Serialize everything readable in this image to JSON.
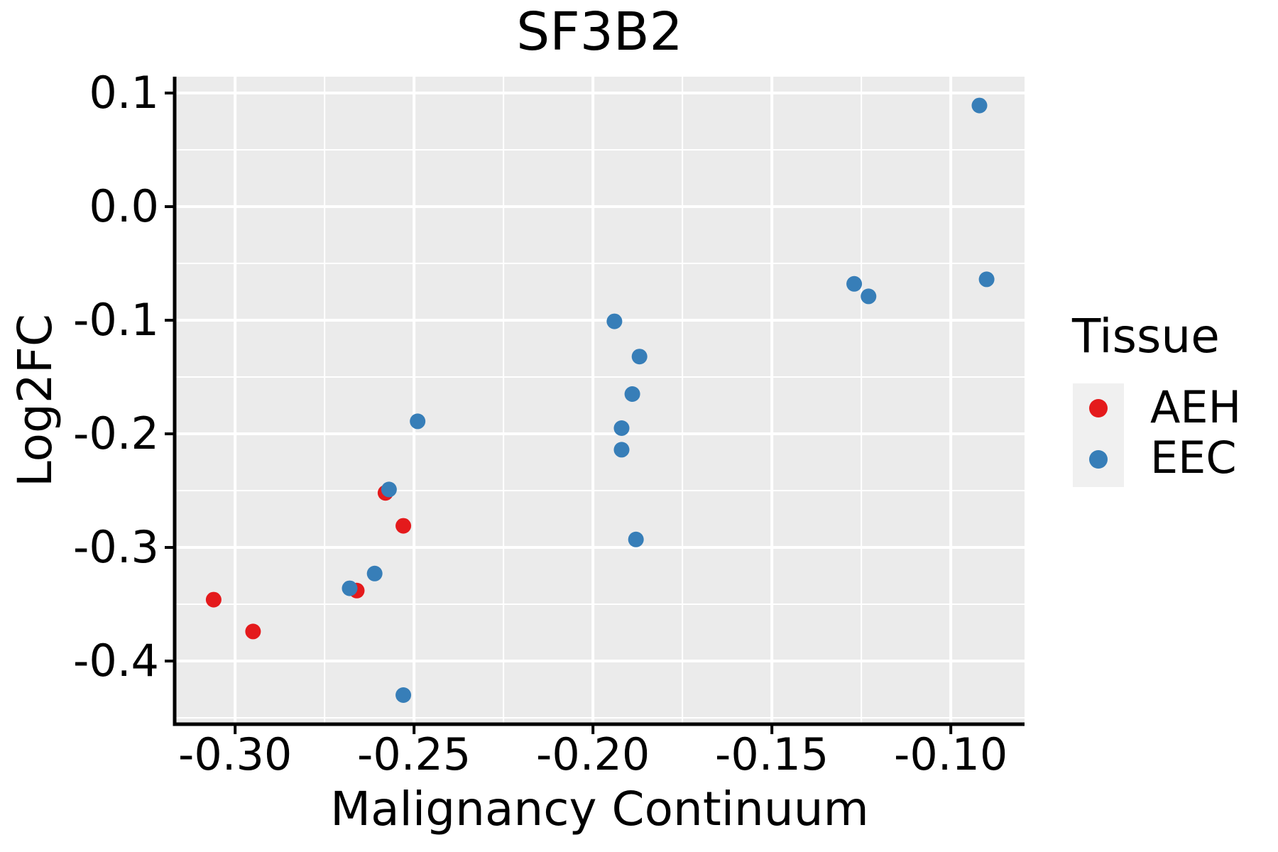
{
  "title": "SF3B2",
  "axes": {
    "x_label": "Malignancy Continuum",
    "y_label": "Log2FC",
    "x_tick_labels": [
      "-0.30",
      "-0.25",
      "-0.20",
      "-0.15",
      "-0.10"
    ],
    "y_tick_labels": [
      "0.1",
      "0.0",
      "-0.1",
      "-0.2",
      "-0.3",
      "-0.4"
    ]
  },
  "legend": {
    "title": "Tissue",
    "items": [
      {
        "label": "AEH",
        "color": "#E41A1C"
      },
      {
        "label": "EEC",
        "color": "#377EB8"
      }
    ]
  },
  "colors": {
    "panel_background": "#EBEBEB",
    "grid": "#FFFFFF",
    "axis": "#000000",
    "text": "#000000",
    "aeh": "#E41A1C",
    "eec": "#377EB8"
  },
  "chart_data": {
    "type": "scatter",
    "title": "SF3B2",
    "xlabel": "Malignancy Continuum",
    "ylabel": "Log2FC",
    "legend_title": "Tissue",
    "legend_position": "right",
    "grid": true,
    "panel_bg": "#EBEBEB",
    "grid_color": "#FFFFFF",
    "point_radius": 11,
    "xlim": [
      -0.3169,
      -0.0794
    ],
    "ylim": [
      -0.4556,
      0.1144
    ],
    "x_ticks": [
      -0.3,
      -0.25,
      -0.2,
      -0.15,
      -0.1
    ],
    "x_minor_ticks": [
      -0.275,
      -0.225,
      -0.175,
      -0.125
    ],
    "y_ticks": [
      0.1,
      0.0,
      -0.1,
      -0.2,
      -0.3,
      -0.4
    ],
    "y_minor_ticks": [
      0.05,
      -0.05,
      -0.15,
      -0.25,
      -0.35,
      -0.45
    ],
    "series": [
      {
        "name": "AEH",
        "color": "#E41A1C",
        "points": [
          [
            -0.258,
            -0.252
          ],
          [
            -0.253,
            -0.281
          ],
          [
            -0.266,
            -0.338
          ],
          [
            -0.306,
            -0.346
          ],
          [
            -0.295,
            -0.374
          ]
        ]
      },
      {
        "name": "EEC",
        "color": "#377EB8",
        "points": [
          [
            -0.249,
            -0.189
          ],
          [
            -0.257,
            -0.249
          ],
          [
            -0.261,
            -0.323
          ],
          [
            -0.268,
            -0.336
          ],
          [
            -0.253,
            -0.43
          ],
          [
            -0.194,
            -0.101
          ],
          [
            -0.187,
            -0.132
          ],
          [
            -0.189,
            -0.165
          ],
          [
            -0.192,
            -0.195
          ],
          [
            -0.192,
            -0.214
          ],
          [
            -0.188,
            -0.293
          ],
          [
            -0.127,
            -0.068
          ],
          [
            -0.123,
            -0.079
          ],
          [
            -0.09,
            -0.064
          ],
          [
            -0.092,
            0.089
          ]
        ]
      }
    ]
  }
}
